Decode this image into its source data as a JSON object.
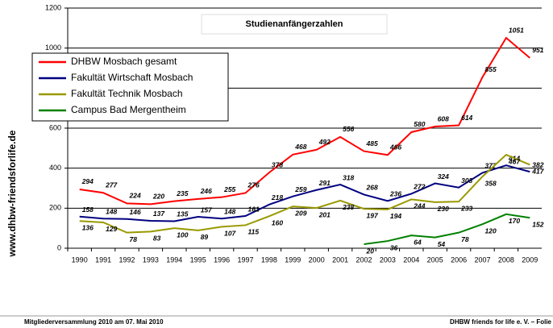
{
  "chart_data": {
    "type": "line",
    "title": "Studienanfängerzahlen",
    "side_text": "www.dhbw-friendsforlife.de",
    "footer_left": "Mitgliederversammlung 2010 am 07. Mai 2010",
    "footer_right": "DHBW friends for life e. V. – Folie",
    "categories": [
      "1990",
      "1991",
      "1992",
      "1993",
      "1994",
      "1995",
      "1996",
      "1997",
      "1998",
      "1999",
      "2000",
      "2001",
      "2002",
      "2003",
      "2004",
      "2005",
      "2006",
      "2007",
      "2008",
      "2009"
    ],
    "series": [
      {
        "name": "DHBW Mosbach gesamt",
        "color": "#ff0000",
        "values": [
          294,
          277,
          224,
          220,
          235,
          246,
          255,
          276,
          378,
          468,
          492,
          556,
          485,
          466,
          580,
          608,
          614,
          855,
          1051,
          951
        ]
      },
      {
        "name": "Fakultät Wirtschaft Mosbach",
        "color": "#000080",
        "values": [
          158,
          148,
          146,
          137,
          135,
          157,
          148,
          161,
          218,
          259,
          291,
          318,
          268,
          236,
          272,
          324,
          303,
          377,
          414,
          382
        ]
      },
      {
        "name": "Fakultät Technik Mosbach",
        "color": "#999900",
        "values": [
          136,
          129,
          78,
          83,
          100,
          89,
          107,
          115,
          160,
          209,
          201,
          238,
          197,
          194,
          244,
          230,
          233,
          358,
          467,
          417
        ]
      },
      {
        "name": "Campus Bad Mergentheim",
        "color": "#008000",
        "values": [
          null,
          null,
          null,
          null,
          null,
          null,
          null,
          null,
          null,
          null,
          null,
          null,
          20,
          36,
          64,
          54,
          78,
          120,
          170,
          152
        ]
      }
    ],
    "ylim": [
      0,
      1200
    ],
    "yticks": [
      0,
      200,
      400,
      600,
      800,
      1000,
      1200
    ],
    "grid": true,
    "legend": "upper left"
  }
}
